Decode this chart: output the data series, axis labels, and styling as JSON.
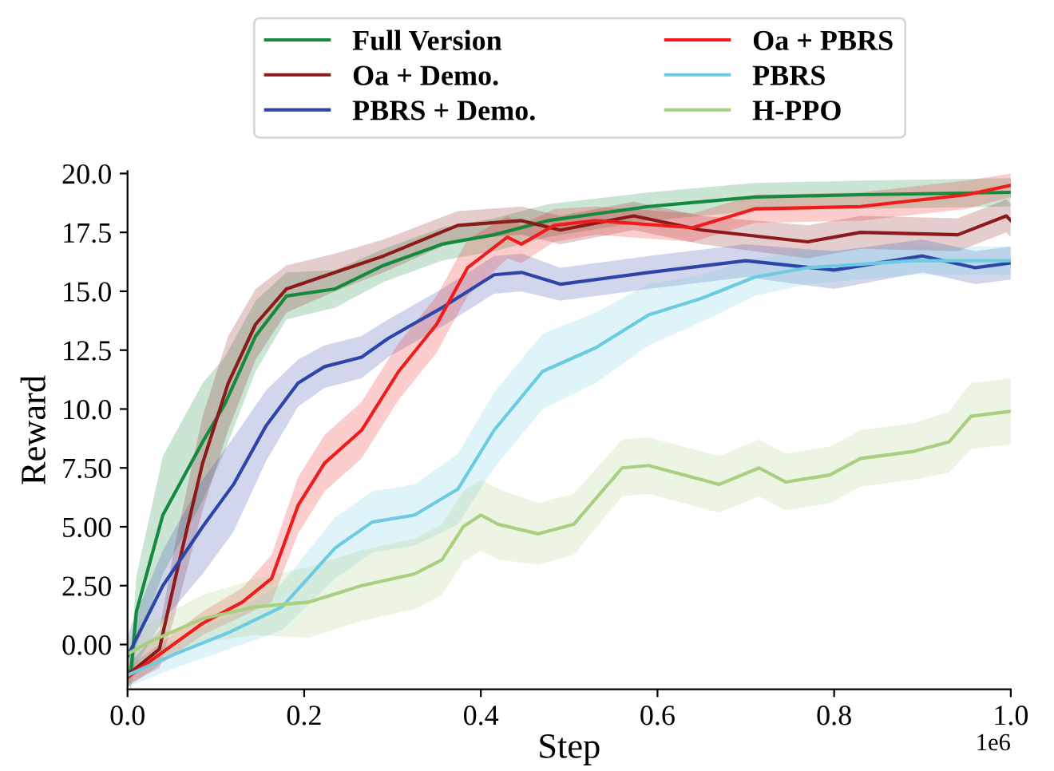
{
  "chart_data": {
    "type": "line",
    "xlabel": "Step",
    "ylabel": "Reward",
    "xlim": [
      0,
      1
    ],
    "ylim": [
      -1.9,
      20.1
    ],
    "xticks": [
      {
        "value": 0,
        "label": "0.0"
      },
      {
        "value": 0.2,
        "label": "0.2"
      },
      {
        "value": 0.4,
        "label": "0.4"
      },
      {
        "value": 0.6,
        "label": "0.6"
      },
      {
        "value": 0.8,
        "label": "0.8"
      },
      {
        "value": 1,
        "label": "1.0"
      }
    ],
    "yticks": [
      {
        "value": 0,
        "label": "0.00"
      },
      {
        "value": 2.5,
        "label": "2.50"
      },
      {
        "value": 5,
        "label": "5.00"
      },
      {
        "value": 7.5,
        "label": "7.50"
      },
      {
        "value": 10,
        "label": "10.0"
      },
      {
        "value": 12.5,
        "label": "12.5"
      },
      {
        "value": 15,
        "label": "15.0"
      },
      {
        "value": 17.5,
        "label": "17.5"
      },
      {
        "value": 20,
        "label": "20.0"
      }
    ],
    "annotations": [
      "1e6"
    ],
    "grid": false,
    "legend": "top",
    "marker": "none",
    "line_style": "solid",
    "series": [
      {
        "name": "Full Version",
        "color": "#138a3e",
        "x": [
          0,
          0.004,
          0.01,
          0.04,
          0.085,
          0.11,
          0.145,
          0.18,
          0.235,
          0.29,
          0.356,
          0.415,
          0.476,
          0.59,
          0.71,
          0.83,
          1.0
        ],
        "values": [
          -1.2,
          -1.1,
          1.4,
          5.5,
          8.6,
          10.2,
          13.1,
          14.8,
          15.1,
          16.1,
          17.0,
          17.4,
          18.0,
          18.6,
          19.0,
          19.1,
          19.2
        ],
        "lower": [
          -1.7,
          -1.9,
          -0.1,
          3.0,
          6.1,
          8.2,
          11.6,
          13.8,
          14.3,
          15.4,
          16.3,
          16.7,
          17.3,
          18.0,
          18.4,
          18.5,
          18.6
        ],
        "upper": [
          -0.7,
          -0.3,
          2.9,
          8.0,
          11.1,
          12.2,
          14.6,
          15.8,
          15.9,
          16.8,
          17.7,
          18.1,
          18.7,
          19.2,
          19.6,
          19.7,
          19.8
        ]
      },
      {
        "name": "Oa + Demo.",
        "color": "#8b1a1a",
        "x": [
          0,
          0.036,
          0.054,
          0.085,
          0.114,
          0.145,
          0.18,
          0.235,
          0.29,
          0.374,
          0.446,
          0.49,
          0.573,
          0.65,
          0.77,
          0.83,
          0.94,
          0.995,
          1.0
        ],
        "values": [
          -1.3,
          -0.2,
          2.8,
          7.7,
          11.1,
          13.6,
          15.1,
          15.8,
          16.5,
          17.8,
          18.0,
          17.6,
          18.2,
          17.6,
          17.1,
          17.5,
          17.4,
          18.2,
          18.0
        ],
        "lower": [
          -1.7,
          -1.0,
          1.3,
          5.7,
          9.1,
          12.1,
          14.1,
          15.0,
          15.8,
          17.2,
          17.4,
          17.0,
          17.6,
          17.0,
          16.4,
          16.8,
          16.7,
          17.5,
          17.3
        ],
        "upper": [
          -0.9,
          0.6,
          4.3,
          9.7,
          13.1,
          15.1,
          16.1,
          16.6,
          17.2,
          18.4,
          18.6,
          18.2,
          18.8,
          18.2,
          17.8,
          18.2,
          18.1,
          18.9,
          18.7
        ]
      },
      {
        "name": "PBRS + Demo.",
        "color": "#2e45a8",
        "x": [
          0,
          0.004,
          0.04,
          0.085,
          0.12,
          0.157,
          0.193,
          0.223,
          0.265,
          0.295,
          0.356,
          0.415,
          0.446,
          0.49,
          0.59,
          0.7,
          0.8,
          0.9,
          0.96,
          1.0
        ],
        "values": [
          -0.5,
          -0.2,
          2.5,
          5.0,
          6.8,
          9.3,
          11.1,
          11.8,
          12.2,
          13.0,
          14.3,
          15.7,
          15.8,
          15.3,
          15.8,
          16.3,
          15.9,
          16.5,
          16.0,
          16.2
        ],
        "lower": [
          -1.3,
          -1.2,
          1.0,
          3.0,
          4.8,
          7.8,
          10.1,
          10.9,
          11.3,
          12.2,
          13.5,
          14.9,
          15.0,
          14.6,
          15.1,
          15.6,
          15.1,
          15.8,
          15.3,
          15.5
        ],
        "upper": [
          0.3,
          0.8,
          4.0,
          7.0,
          8.8,
          10.8,
          12.1,
          12.7,
          13.1,
          13.8,
          15.1,
          16.5,
          16.6,
          16.0,
          16.5,
          17.0,
          16.7,
          17.2,
          16.7,
          16.9
        ]
      },
      {
        "name": "Oa + PBRS",
        "color": "#f01c1c",
        "x": [
          0,
          0.085,
          0.13,
          0.163,
          0.193,
          0.223,
          0.265,
          0.307,
          0.35,
          0.385,
          0.43,
          0.446,
          0.483,
          0.53,
          0.64,
          0.71,
          0.83,
          0.95,
          1.0
        ],
        "values": [
          -1.4,
          0.9,
          1.8,
          2.8,
          5.9,
          7.7,
          9.1,
          11.6,
          13.6,
          16.0,
          17.3,
          17.0,
          17.8,
          18.0,
          17.7,
          18.5,
          18.6,
          19.1,
          19.5
        ],
        "lower": [
          -1.8,
          0.4,
          1.2,
          1.8,
          4.7,
          6.5,
          7.9,
          10.4,
          12.4,
          14.8,
          16.4,
          16.2,
          17.1,
          17.4,
          17.1,
          17.9,
          18.0,
          18.5,
          19.0
        ],
        "upper": [
          -1.0,
          1.4,
          2.4,
          3.8,
          7.1,
          8.9,
          10.3,
          12.8,
          14.8,
          17.2,
          18.2,
          17.8,
          18.5,
          18.6,
          18.3,
          19.1,
          19.2,
          19.7,
          20.0
        ]
      },
      {
        "name": "PBRS",
        "color": "#6ccbe0",
        "x": [
          0,
          0.054,
          0.114,
          0.175,
          0.235,
          0.277,
          0.325,
          0.374,
          0.415,
          0.47,
          0.53,
          0.59,
          0.65,
          0.71,
          0.77,
          0.89,
          1.0
        ],
        "values": [
          -1.3,
          -0.4,
          0.5,
          1.6,
          4.1,
          5.2,
          5.5,
          6.6,
          9.1,
          11.6,
          12.6,
          14.0,
          14.7,
          15.6,
          16.0,
          16.3,
          16.3
        ],
        "lower": [
          -1.8,
          -1.0,
          -0.2,
          0.6,
          2.8,
          3.9,
          4.2,
          5.1,
          7.5,
          10.0,
          11.1,
          12.7,
          13.7,
          14.8,
          15.3,
          15.7,
          15.7
        ],
        "upper": [
          -0.8,
          0.2,
          1.2,
          2.6,
          5.4,
          6.5,
          6.8,
          8.1,
          10.7,
          13.2,
          14.1,
          15.3,
          15.7,
          16.4,
          16.7,
          16.9,
          16.9
        ]
      },
      {
        "name": "H-PPO",
        "color": "#a9cf80",
        "x": [
          0,
          0.024,
          0.085,
          0.145,
          0.205,
          0.265,
          0.325,
          0.356,
          0.38,
          0.4,
          0.42,
          0.465,
          0.505,
          0.56,
          0.59,
          0.67,
          0.715,
          0.745,
          0.795,
          0.83,
          0.89,
          0.93,
          0.955,
          1.0
        ],
        "values": [
          -0.4,
          0.1,
          1.1,
          1.6,
          1.8,
          2.5,
          3.0,
          3.6,
          5.0,
          5.5,
          5.1,
          4.7,
          5.1,
          7.5,
          7.6,
          6.8,
          7.5,
          6.9,
          7.2,
          7.9,
          8.2,
          8.6,
          9.7,
          9.9
        ],
        "lower": [
          -1.0,
          -0.7,
          0.1,
          0.4,
          0.3,
          1.0,
          1.5,
          2.1,
          3.5,
          4.0,
          3.6,
          3.4,
          3.8,
          6.3,
          6.4,
          5.6,
          6.3,
          5.7,
          6.0,
          6.7,
          7.0,
          7.3,
          8.3,
          8.5
        ],
        "upper": [
          0.2,
          0.9,
          2.1,
          2.8,
          3.3,
          4.0,
          4.5,
          5.1,
          6.5,
          7.0,
          6.6,
          6.0,
          6.4,
          8.7,
          8.8,
          8.0,
          8.7,
          8.1,
          8.4,
          9.1,
          9.4,
          9.9,
          11.1,
          11.3
        ]
      }
    ]
  }
}
